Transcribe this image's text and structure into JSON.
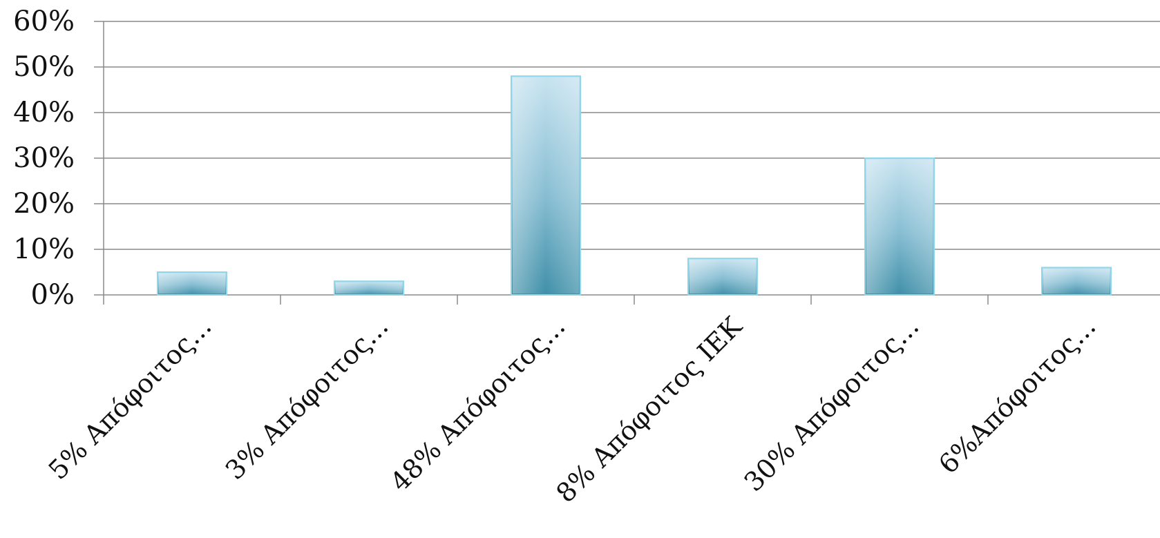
{
  "chart_data": {
    "type": "bar",
    "categories": [
      "5% Απόφοιτος...",
      "3% Απόφοιτος...",
      "48% Απόφοιτος...",
      "8% Απόφοιτος ΙΕΚ",
      "30% Απόφοιτος...",
      "6%Απόφοιτος..."
    ],
    "values": [
      5,
      3,
      48,
      8,
      30,
      6
    ],
    "unit": "%",
    "ylim": [
      0,
      60
    ],
    "yticks": [
      0,
      10,
      20,
      30,
      40,
      50,
      60
    ],
    "ytick_labels": [
      "0%",
      "10%",
      "20%",
      "30%",
      "40%",
      "50%",
      "60%"
    ],
    "title": "",
    "xlabel": "",
    "ylabel": "",
    "grid": true,
    "legend": "none",
    "colors": {
      "bar_top": "#c7e3f0",
      "bar_bottom": "#3f8fa8",
      "bar_edge": "#8fd6ea",
      "grid": "#8a8a8a",
      "text": "#111111"
    }
  }
}
